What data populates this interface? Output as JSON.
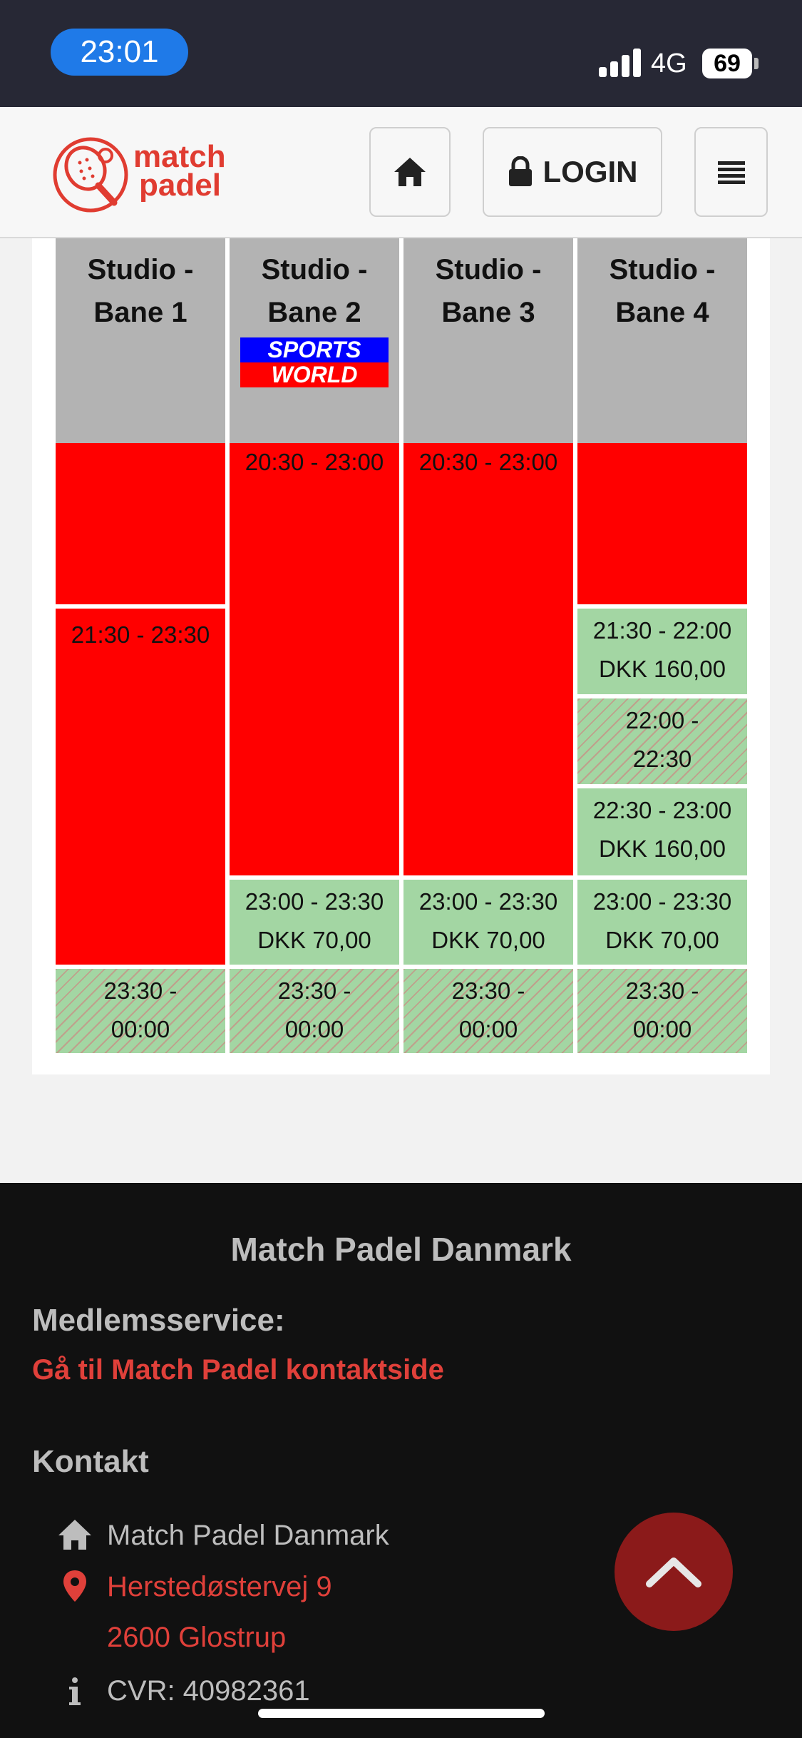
{
  "status_bar": {
    "time": "23:01",
    "network": "4G",
    "battery": "69"
  },
  "header": {
    "logo_line1": "match",
    "logo_line2": "padel",
    "home_icon": "home-icon",
    "login_label": "LOGIN",
    "lock_icon": "lock-icon",
    "menu_icon": "hamburger-icon"
  },
  "schedule": {
    "courts": [
      {
        "line1": "Studio -",
        "line2": "Bane 1"
      },
      {
        "line1": "Studio -",
        "line2": "Bane 2"
      },
      {
        "line1": "Studio -",
        "line2": "Bane 3"
      },
      {
        "line1": "Studio -",
        "line2": "Bane 4"
      }
    ],
    "sponsor": {
      "line1": "SPORTS",
      "line2": "WORLD"
    },
    "slots": {
      "c1_booked": "21:30 - 23:30",
      "c1_last_a": "23:30 -",
      "c1_last_b": "00:00",
      "c2_booked": "20:30 - 23:00",
      "c2_avail_a": "23:00 - 23:30",
      "c2_avail_b": "DKK 70,00",
      "c2_last_a": "23:30 -",
      "c2_last_b": "00:00",
      "c3_booked": "20:30 - 23:00",
      "c3_avail_a": "23:00 - 23:30",
      "c3_avail_b": "DKK 70,00",
      "c3_last_a": "23:30 -",
      "c3_last_b": "00:00",
      "c4_s1_a": "21:30 - 22:00",
      "c4_s1_b": "DKK 160,00",
      "c4_s2_a": "22:00 -",
      "c4_s2_b": "22:30",
      "c4_s3_a": "22:30 - 23:00",
      "c4_s3_b": "DKK 160,00",
      "c4_s4_a": "23:00 - 23:30",
      "c4_s4_b": "DKK 70,00",
      "c4_last_a": "23:30 -",
      "c4_last_b": "00:00"
    }
  },
  "footer": {
    "title": "Match Padel Danmark",
    "service_heading": "Medlemsservice:",
    "service_link": "Gå til Match Padel kontaktside",
    "contact_heading": "Kontakt",
    "company": "Match Padel Danmark",
    "street": "Herstedøstervej 9",
    "city": "2600  Glostrup",
    "cvr": "CVR: 40982361"
  }
}
